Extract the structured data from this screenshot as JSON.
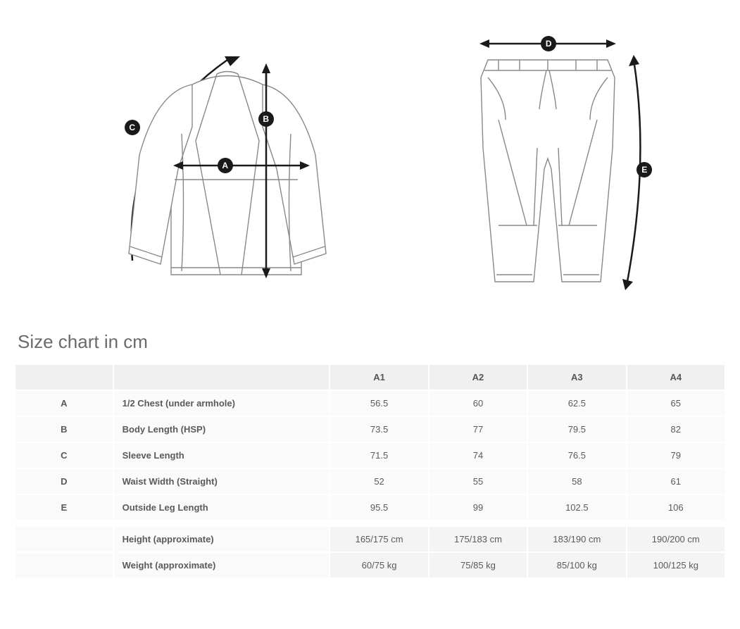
{
  "title": "Size chart in cm",
  "diagram": {
    "jacket_markers": [
      "A",
      "B",
      "C"
    ],
    "pants_markers": [
      "D",
      "E"
    ],
    "stroke_color": "#888888",
    "line_color": "#1a1a1a",
    "background": "#ffffff"
  },
  "table": {
    "header": [
      "",
      "",
      "A1",
      "A2",
      "A3",
      "A4"
    ],
    "rows": [
      {
        "letter": "A",
        "label": "1/2 Chest (under armhole)",
        "values": [
          "56.5",
          "60",
          "62.5",
          "65"
        ]
      },
      {
        "letter": "B",
        "label": "Body Length (HSP)",
        "values": [
          "73.5",
          "77",
          "79.5",
          "82"
        ]
      },
      {
        "letter": "C",
        "label": "Sleeve Length",
        "values": [
          "71.5",
          "74",
          "76.5",
          "79"
        ]
      },
      {
        "letter": "D",
        "label": "Waist Width (Straight)",
        "values": [
          "52",
          "55",
          "58",
          "61"
        ]
      },
      {
        "letter": "E",
        "label": "Outside Leg Length",
        "values": [
          "95.5",
          "99",
          "102.5",
          "106"
        ]
      }
    ],
    "approx_rows": [
      {
        "label": "Height (approximate)",
        "values": [
          "165/175 cm",
          "175/183 cm",
          "183/190 cm",
          "190/200 cm"
        ]
      },
      {
        "label": "Weight (approximate)",
        "values": [
          "60/75 kg",
          "75/85 kg",
          "85/100 kg",
          "100/125 kg"
        ]
      }
    ],
    "header_bg": "#f0f0f0",
    "cell_bg": "#fafafa",
    "approx_bg": "#f4f4f4",
    "text_color": "#5a5a5a",
    "font_size": 13
  }
}
